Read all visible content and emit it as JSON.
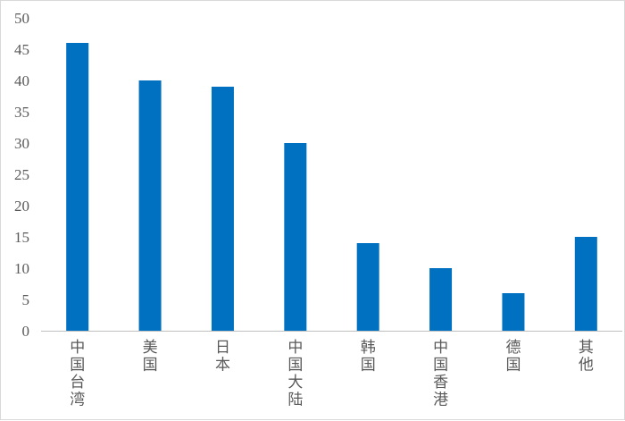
{
  "chart_data": {
    "type": "bar",
    "categories": [
      "中国台湾",
      "美国",
      "日本",
      "中国大陆",
      "韩国",
      "中国香港",
      "德国",
      "其他"
    ],
    "values": [
      46,
      40,
      39,
      30,
      14,
      10,
      6,
      15
    ],
    "title": "",
    "xlabel": "",
    "ylabel": "",
    "ylim": [
      0,
      50
    ],
    "yticks": [
      0,
      5,
      10,
      15,
      20,
      25,
      30,
      35,
      40,
      45,
      50
    ],
    "grid": false,
    "legend": "none",
    "bar_color": "#0070C0",
    "axis_color": "#bfbfbf",
    "text_color": "#595959"
  }
}
